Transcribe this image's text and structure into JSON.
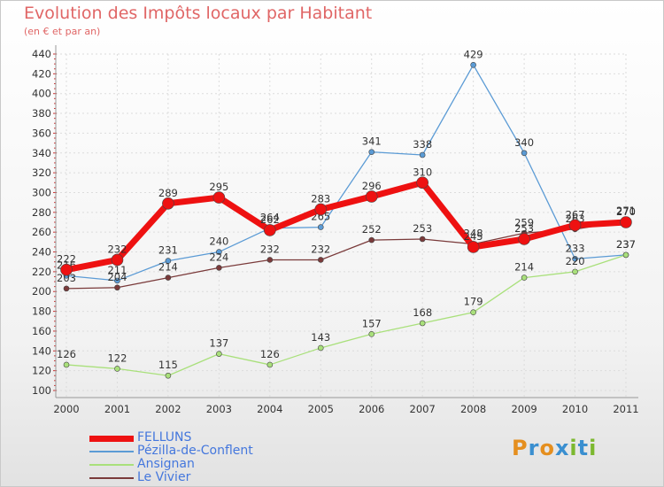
{
  "chart_data": {
    "type": "line",
    "title": "Evolution des Impôts locaux par Habitant",
    "subtitle": "(en € et par an)",
    "x": [
      "2000",
      "2001",
      "2002",
      "2003",
      "2004",
      "2005",
      "2006",
      "2007",
      "2008",
      "2009",
      "2010",
      "2011"
    ],
    "ylim": [
      100,
      440
    ],
    "yticks": [
      100,
      120,
      140,
      160,
      180,
      200,
      220,
      240,
      260,
      280,
      300,
      320,
      340,
      360,
      380,
      400,
      420,
      440
    ],
    "grid": true,
    "legend_position": "bottom-left",
    "series": [
      {
        "name": "FELLUNS",
        "color": "#ee1111",
        "values": [
          222,
          232,
          289,
          295,
          262,
          283,
          296,
          310,
          245,
          253,
          267,
          270
        ]
      },
      {
        "name": "Pézilla-de-Conflent",
        "color": "#5b9bd5",
        "values": [
          216,
          211,
          231,
          240,
          264,
          265,
          341,
          338,
          429,
          340,
          233,
          237
        ]
      },
      {
        "name": "Ansignan",
        "color": "#a9e07b",
        "values": [
          126,
          122,
          115,
          137,
          126,
          143,
          157,
          168,
          179,
          214,
          220,
          237
        ]
      },
      {
        "name": "Le Vivier",
        "color": "#7a3a3a",
        "values": [
          203,
          204,
          214,
          224,
          232,
          232,
          252,
          253,
          248,
          259,
          263,
          271
        ]
      }
    ]
  },
  "logo": {
    "text": "Proxiti",
    "colors": [
      "#e58f1f",
      "#3a8fd0",
      "#e58f1f",
      "#3a8fd0",
      "#7cb82f",
      "#3a8fd0",
      "#7cb82f"
    ]
  }
}
